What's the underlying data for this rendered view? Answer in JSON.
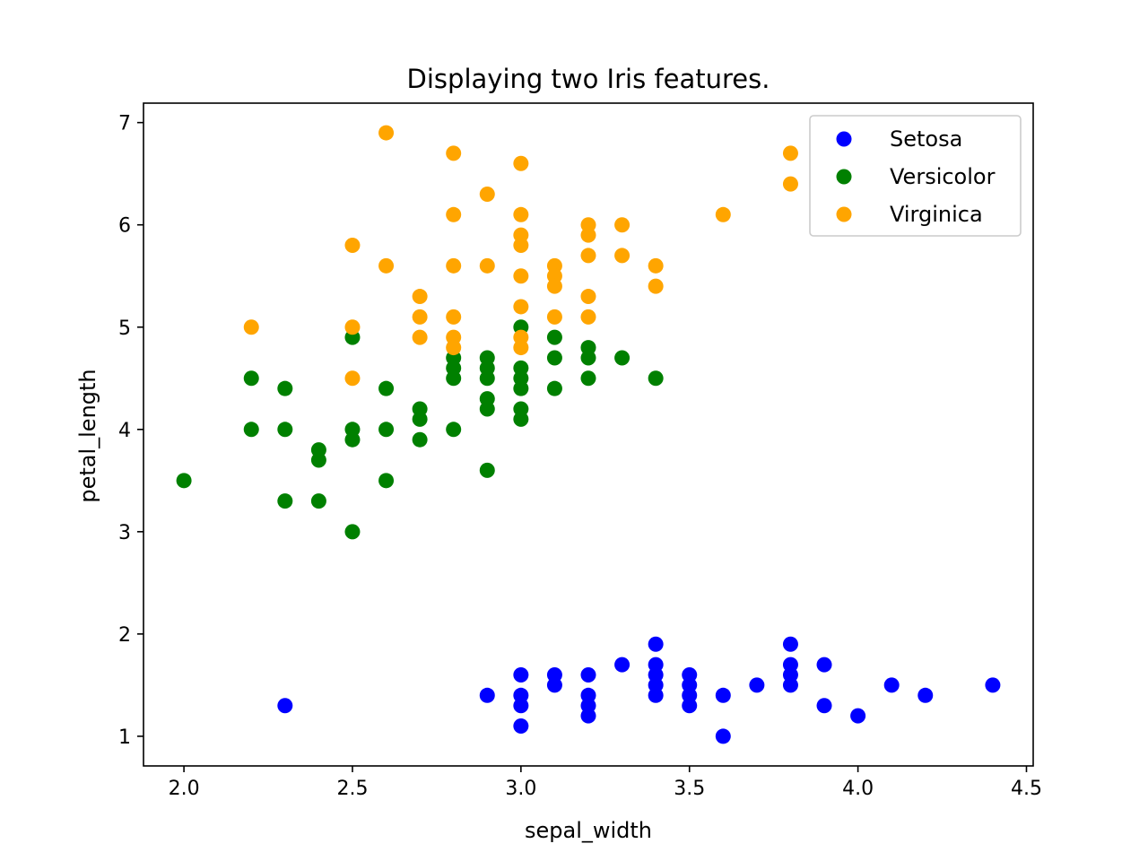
{
  "chart_data": {
    "type": "scatter",
    "title": "Displaying two Iris features.",
    "xlabel": "sepal_width",
    "ylabel": "petal_length",
    "xlim": [
      1.88,
      4.52
    ],
    "ylim": [
      0.71,
      7.19
    ],
    "xticks": [
      "2.0",
      "2.5",
      "3.0",
      "3.5",
      "4.0",
      "4.5"
    ],
    "yticks": [
      "1",
      "2",
      "3",
      "4",
      "5",
      "6",
      "7"
    ],
    "grid": false,
    "legend_position": "top-right",
    "series": [
      {
        "name": "Setosa",
        "color": "#0000ff",
        "points": [
          [
            2.3,
            1.3
          ],
          [
            2.9,
            1.4
          ],
          [
            3.0,
            1.6
          ],
          [
            3.0,
            1.4
          ],
          [
            3.0,
            1.3
          ],
          [
            3.0,
            1.1
          ],
          [
            3.1,
            1.6
          ],
          [
            3.1,
            1.5
          ],
          [
            3.2,
            1.6
          ],
          [
            3.2,
            1.4
          ],
          [
            3.2,
            1.3
          ],
          [
            3.2,
            1.2
          ],
          [
            3.3,
            1.7
          ],
          [
            3.4,
            1.9
          ],
          [
            3.4,
            1.7
          ],
          [
            3.4,
            1.6
          ],
          [
            3.4,
            1.5
          ],
          [
            3.4,
            1.4
          ],
          [
            3.5,
            1.6
          ],
          [
            3.5,
            1.5
          ],
          [
            3.5,
            1.4
          ],
          [
            3.5,
            1.3
          ],
          [
            3.6,
            1.4
          ],
          [
            3.6,
            1.0
          ],
          [
            3.7,
            1.5
          ],
          [
            3.8,
            1.9
          ],
          [
            3.8,
            1.7
          ],
          [
            3.8,
            1.6
          ],
          [
            3.8,
            1.5
          ],
          [
            3.9,
            1.7
          ],
          [
            3.9,
            1.3
          ],
          [
            4.0,
            1.2
          ],
          [
            4.1,
            1.5
          ],
          [
            4.2,
            1.4
          ],
          [
            4.4,
            1.5
          ]
        ]
      },
      {
        "name": "Versicolor",
        "color": "#008000",
        "points": [
          [
            2.0,
            3.5
          ],
          [
            2.2,
            4.5
          ],
          [
            2.2,
            4.0
          ],
          [
            2.3,
            4.4
          ],
          [
            2.3,
            4.0
          ],
          [
            2.3,
            3.3
          ],
          [
            2.4,
            3.8
          ],
          [
            2.4,
            3.7
          ],
          [
            2.4,
            3.3
          ],
          [
            2.5,
            4.9
          ],
          [
            2.5,
            4.0
          ],
          [
            2.5,
            3.9
          ],
          [
            2.5,
            3.0
          ],
          [
            2.6,
            4.4
          ],
          [
            2.6,
            4.0
          ],
          [
            2.6,
            3.5
          ],
          [
            2.7,
            4.2
          ],
          [
            2.7,
            4.1
          ],
          [
            2.7,
            3.9
          ],
          [
            2.8,
            4.7
          ],
          [
            2.8,
            4.6
          ],
          [
            2.8,
            4.5
          ],
          [
            2.8,
            4.0
          ],
          [
            2.9,
            4.7
          ],
          [
            2.9,
            4.6
          ],
          [
            2.9,
            4.5
          ],
          [
            2.9,
            4.3
          ],
          [
            2.9,
            4.2
          ],
          [
            2.9,
            3.6
          ],
          [
            3.0,
            5.0
          ],
          [
            3.0,
            4.6
          ],
          [
            3.0,
            4.5
          ],
          [
            3.0,
            4.4
          ],
          [
            3.0,
            4.2
          ],
          [
            3.0,
            4.1
          ],
          [
            3.1,
            4.9
          ],
          [
            3.1,
            4.7
          ],
          [
            3.1,
            4.4
          ],
          [
            3.2,
            4.8
          ],
          [
            3.2,
            4.7
          ],
          [
            3.2,
            4.5
          ],
          [
            3.3,
            4.7
          ],
          [
            3.4,
            4.5
          ]
        ]
      },
      {
        "name": "Virginica",
        "color": "#ffa500",
        "points": [
          [
            2.2,
            5.0
          ],
          [
            2.5,
            5.8
          ],
          [
            2.5,
            5.0
          ],
          [
            2.5,
            4.5
          ],
          [
            2.6,
            6.9
          ],
          [
            2.6,
            5.6
          ],
          [
            2.7,
            5.3
          ],
          [
            2.7,
            5.1
          ],
          [
            2.7,
            4.9
          ],
          [
            2.8,
            6.7
          ],
          [
            2.8,
            6.1
          ],
          [
            2.8,
            5.6
          ],
          [
            2.8,
            5.1
          ],
          [
            2.8,
            4.9
          ],
          [
            2.8,
            4.8
          ],
          [
            2.9,
            6.3
          ],
          [
            2.9,
            5.6
          ],
          [
            3.0,
            6.6
          ],
          [
            3.0,
            6.1
          ],
          [
            3.0,
            5.9
          ],
          [
            3.0,
            5.8
          ],
          [
            3.0,
            5.5
          ],
          [
            3.0,
            5.2
          ],
          [
            3.0,
            4.9
          ],
          [
            3.0,
            4.8
          ],
          [
            3.1,
            5.6
          ],
          [
            3.1,
            5.5
          ],
          [
            3.1,
            5.4
          ],
          [
            3.1,
            5.1
          ],
          [
            3.2,
            6.0
          ],
          [
            3.2,
            5.9
          ],
          [
            3.2,
            5.7
          ],
          [
            3.2,
            5.3
          ],
          [
            3.2,
            5.1
          ],
          [
            3.3,
            6.0
          ],
          [
            3.3,
            5.7
          ],
          [
            3.4,
            5.6
          ],
          [
            3.4,
            5.4
          ],
          [
            3.6,
            6.1
          ],
          [
            3.8,
            6.7
          ],
          [
            3.8,
            6.4
          ]
        ]
      }
    ]
  }
}
